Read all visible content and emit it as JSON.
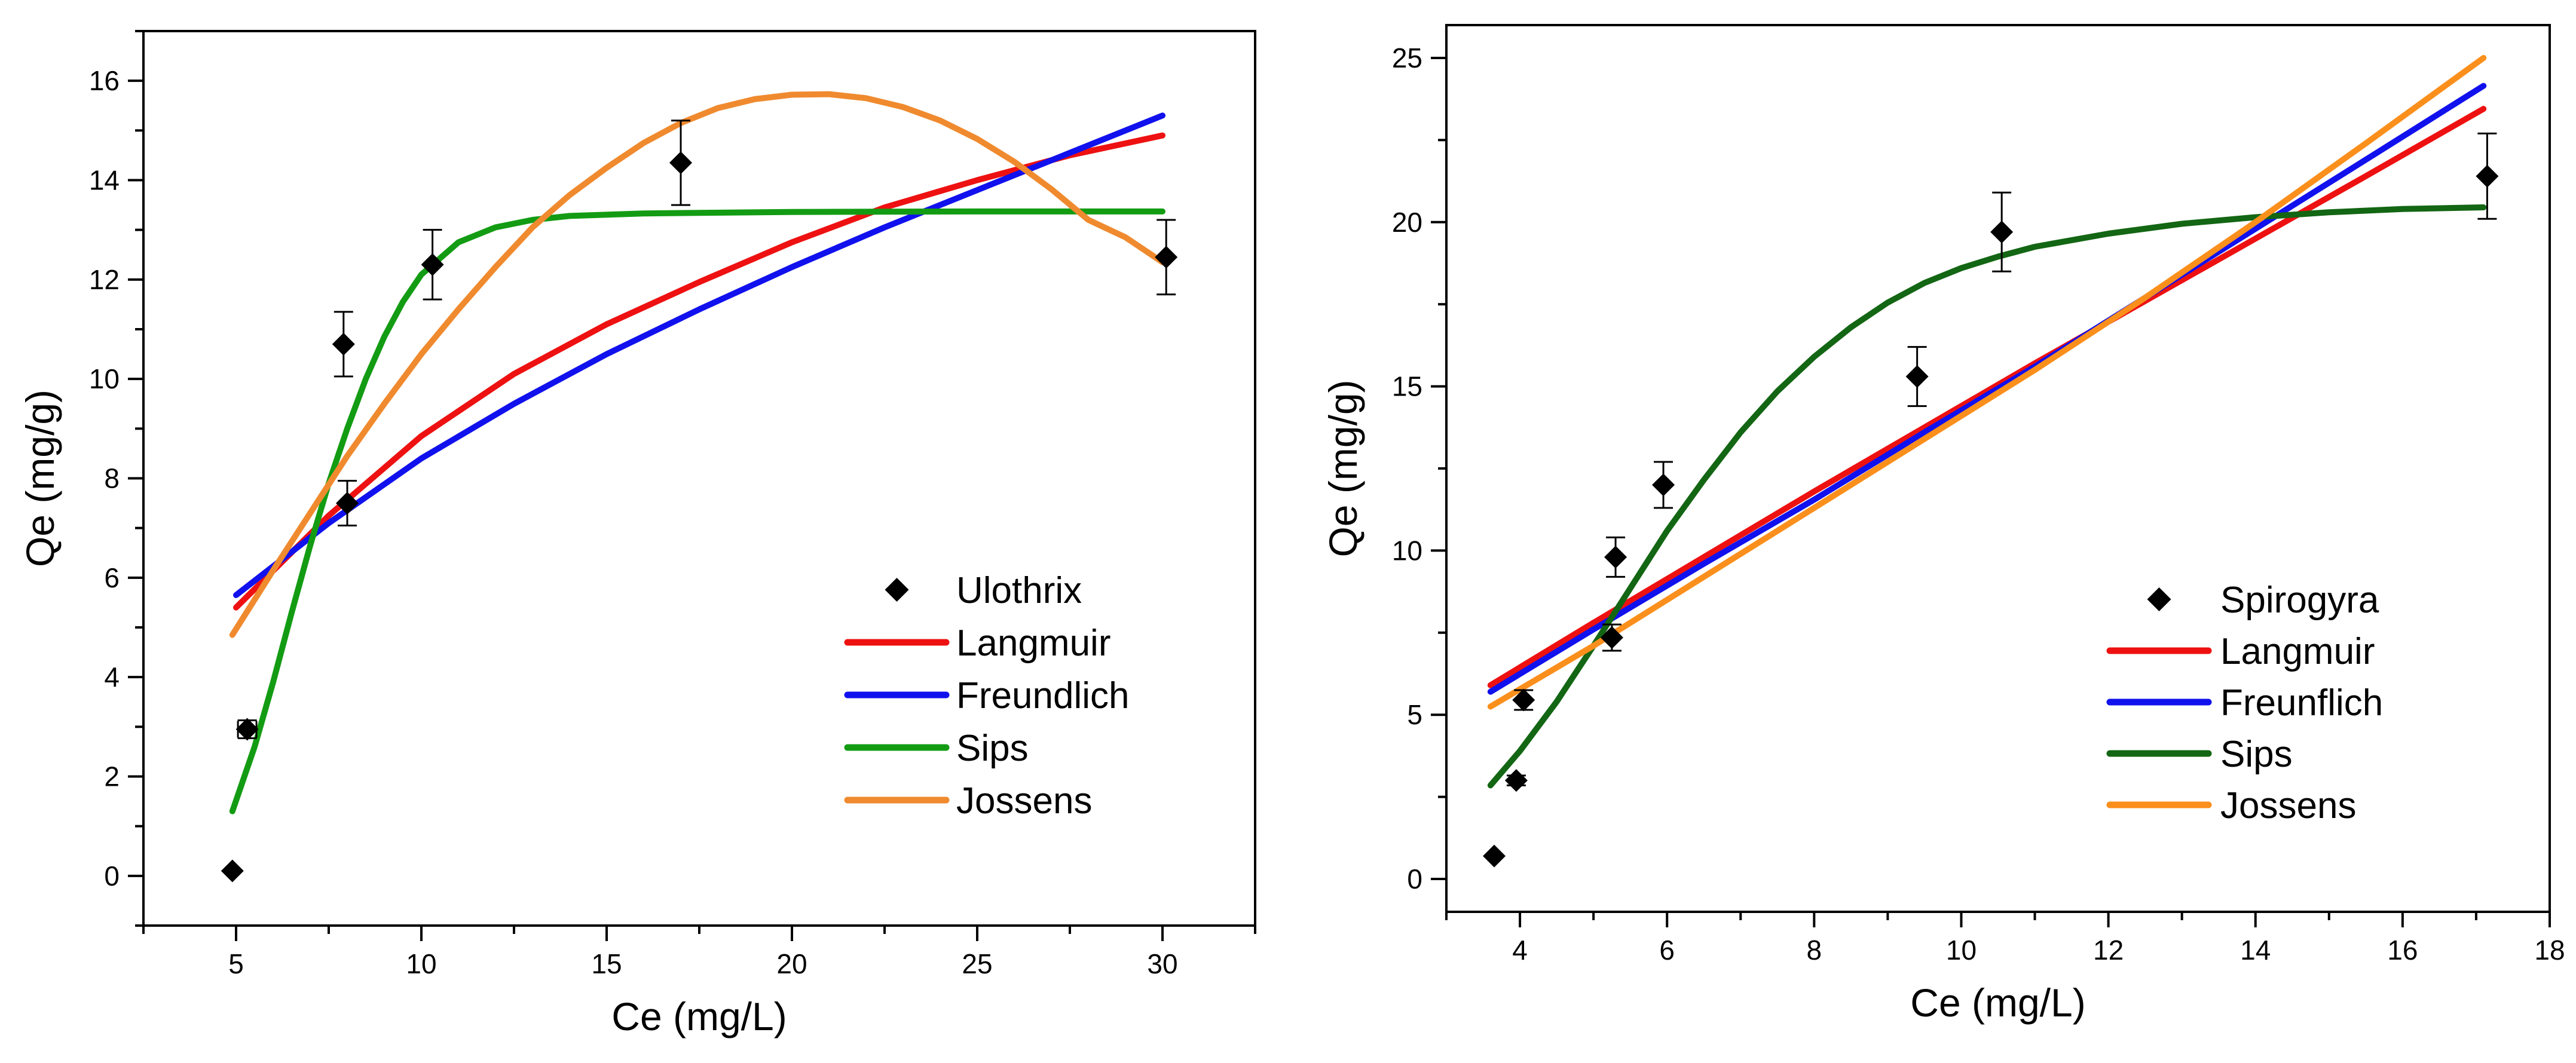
{
  "chart_data": [
    {
      "type": "scatter",
      "xlabel": "Ce (mg/L)",
      "ylabel": "Qe (mg/g)",
      "xlim": [
        2.5,
        32.5
      ],
      "ylim": [
        -1,
        17
      ],
      "xticks": [
        5,
        10,
        15,
        20,
        25,
        30
      ],
      "yticks": [
        0,
        2,
        4,
        6,
        8,
        10,
        12,
        14,
        16
      ],
      "grid": false,
      "legend": "center-right",
      "points": {
        "name": "Ulothrix",
        "marker": "diamond",
        "color": "#000000",
        "x": [
          4.9,
          5.3,
          7.9,
          8.0,
          10.3,
          17.0,
          30.1
        ],
        "y": [
          0.1,
          2.95,
          10.7,
          7.5,
          12.3,
          14.35,
          12.45
        ],
        "err": [
          0,
          0.18,
          0.65,
          0.45,
          0.7,
          0.85,
          0.75
        ],
        "xerr": [
          0,
          0.25,
          0,
          0,
          0,
          0,
          0
        ]
      },
      "series": [
        {
          "name": "Langmuir",
          "color": "#ee1111",
          "x": [
            5,
            7.5,
            10,
            12.5,
            15,
            17.5,
            20,
            22.5,
            25,
            27.5,
            30
          ],
          "y": [
            5.4,
            7.25,
            8.85,
            10.1,
            11.1,
            11.95,
            12.75,
            13.45,
            14.0,
            14.5,
            14.9
          ]
        },
        {
          "name": "Freundlich",
          "color": "#1111ee",
          "x": [
            5,
            7.5,
            10,
            12.5,
            15,
            17.5,
            20,
            22.5,
            25,
            27.5,
            30
          ],
          "y": [
            5.65,
            7.1,
            8.4,
            9.5,
            10.5,
            11.4,
            12.25,
            13.05,
            13.8,
            14.55,
            15.3
          ]
        },
        {
          "name": "Sips",
          "color": "#139c13",
          "x": [
            4.9,
            5.5,
            6,
            6.5,
            7,
            7.5,
            8,
            8.5,
            9,
            9.5,
            10,
            11,
            12,
            13,
            14,
            16,
            20,
            25,
            30
          ],
          "y": [
            1.3,
            2.6,
            3.9,
            5.3,
            6.65,
            7.9,
            9.0,
            10.0,
            10.85,
            11.55,
            12.1,
            12.75,
            13.05,
            13.2,
            13.28,
            13.33,
            13.36,
            13.37,
            13.37
          ]
        },
        {
          "name": "Jossens",
          "color": "#f08a2e",
          "x": [
            4.9,
            6,
            7,
            8,
            9,
            10,
            11,
            12,
            13,
            14,
            15,
            16,
            17,
            18,
            19,
            20,
            21,
            22,
            23,
            24,
            25,
            26,
            27,
            28,
            29,
            30
          ],
          "y": [
            4.85,
            6.15,
            7.3,
            8.45,
            9.5,
            10.5,
            11.4,
            12.25,
            13.05,
            13.7,
            14.25,
            14.75,
            15.15,
            15.45,
            15.63,
            15.72,
            15.73,
            15.65,
            15.47,
            15.2,
            14.83,
            14.37,
            13.82,
            13.2,
            12.85,
            12.35
          ]
        }
      ]
    },
    {
      "type": "scatter",
      "xlabel": "Ce (mg/L)",
      "ylabel": "Qe (mg/g)",
      "xlim": [
        3,
        18
      ],
      "ylim": [
        -1,
        26
      ],
      "xticks": [
        4,
        6,
        8,
        10,
        12,
        14,
        16,
        18
      ],
      "yticks": [
        0,
        5,
        10,
        15,
        20,
        25
      ],
      "grid": false,
      "legend": "center-right",
      "points": {
        "name": "Spirogyra",
        "marker": "diamond",
        "color": "#000000",
        "x": [
          3.65,
          3.95,
          4.05,
          5.25,
          5.3,
          5.95,
          9.4,
          10.55,
          17.15
        ],
        "y": [
          0.7,
          3.0,
          5.45,
          7.35,
          9.8,
          12.0,
          15.3,
          19.7,
          21.4
        ],
        "err": [
          0,
          0.15,
          0.3,
          0.4,
          0.6,
          0.7,
          0.9,
          1.2,
          1.3
        ]
      },
      "series": [
        {
          "name": "Langmuir",
          "color": "#ee1111",
          "x": [
            3.6,
            5,
            6.5,
            8,
            9.5,
            11,
            12.5,
            14,
            15.5,
            17.1
          ],
          "y": [
            5.9,
            7.8,
            9.8,
            11.8,
            13.75,
            15.7,
            17.6,
            19.5,
            21.4,
            23.45
          ]
        },
        {
          "name": "Freunflich",
          "color": "#1111ee",
          "x": [
            3.6,
            5,
            6.5,
            8,
            9.5,
            11,
            12.5,
            14,
            15.5,
            17.1
          ],
          "y": [
            5.7,
            7.6,
            9.6,
            11.55,
            13.6,
            15.6,
            17.7,
            19.8,
            21.9,
            24.15
          ]
        },
        {
          "name": "Sips",
          "color": "#136613",
          "x": [
            3.6,
            4,
            4.5,
            5,
            5.5,
            6,
            6.5,
            7,
            7.5,
            8,
            8.5,
            9,
            9.5,
            10,
            10.5,
            11,
            12,
            13,
            14,
            15,
            16,
            17.1
          ],
          "y": [
            2.85,
            3.9,
            5.4,
            7.1,
            8.85,
            10.6,
            12.15,
            13.6,
            14.85,
            15.9,
            16.8,
            17.55,
            18.15,
            18.6,
            18.95,
            19.25,
            19.65,
            19.95,
            20.15,
            20.3,
            20.4,
            20.45
          ]
        },
        {
          "name": "Jossens",
          "color": "#fb8f1c",
          "x": [
            3.6,
            5,
            6.5,
            8,
            9.5,
            11,
            12.5,
            14,
            15.5,
            17.1
          ],
          "y": [
            5.25,
            7.1,
            9.2,
            11.3,
            13.4,
            15.5,
            17.7,
            20.0,
            22.4,
            25.0
          ]
        }
      ]
    }
  ]
}
